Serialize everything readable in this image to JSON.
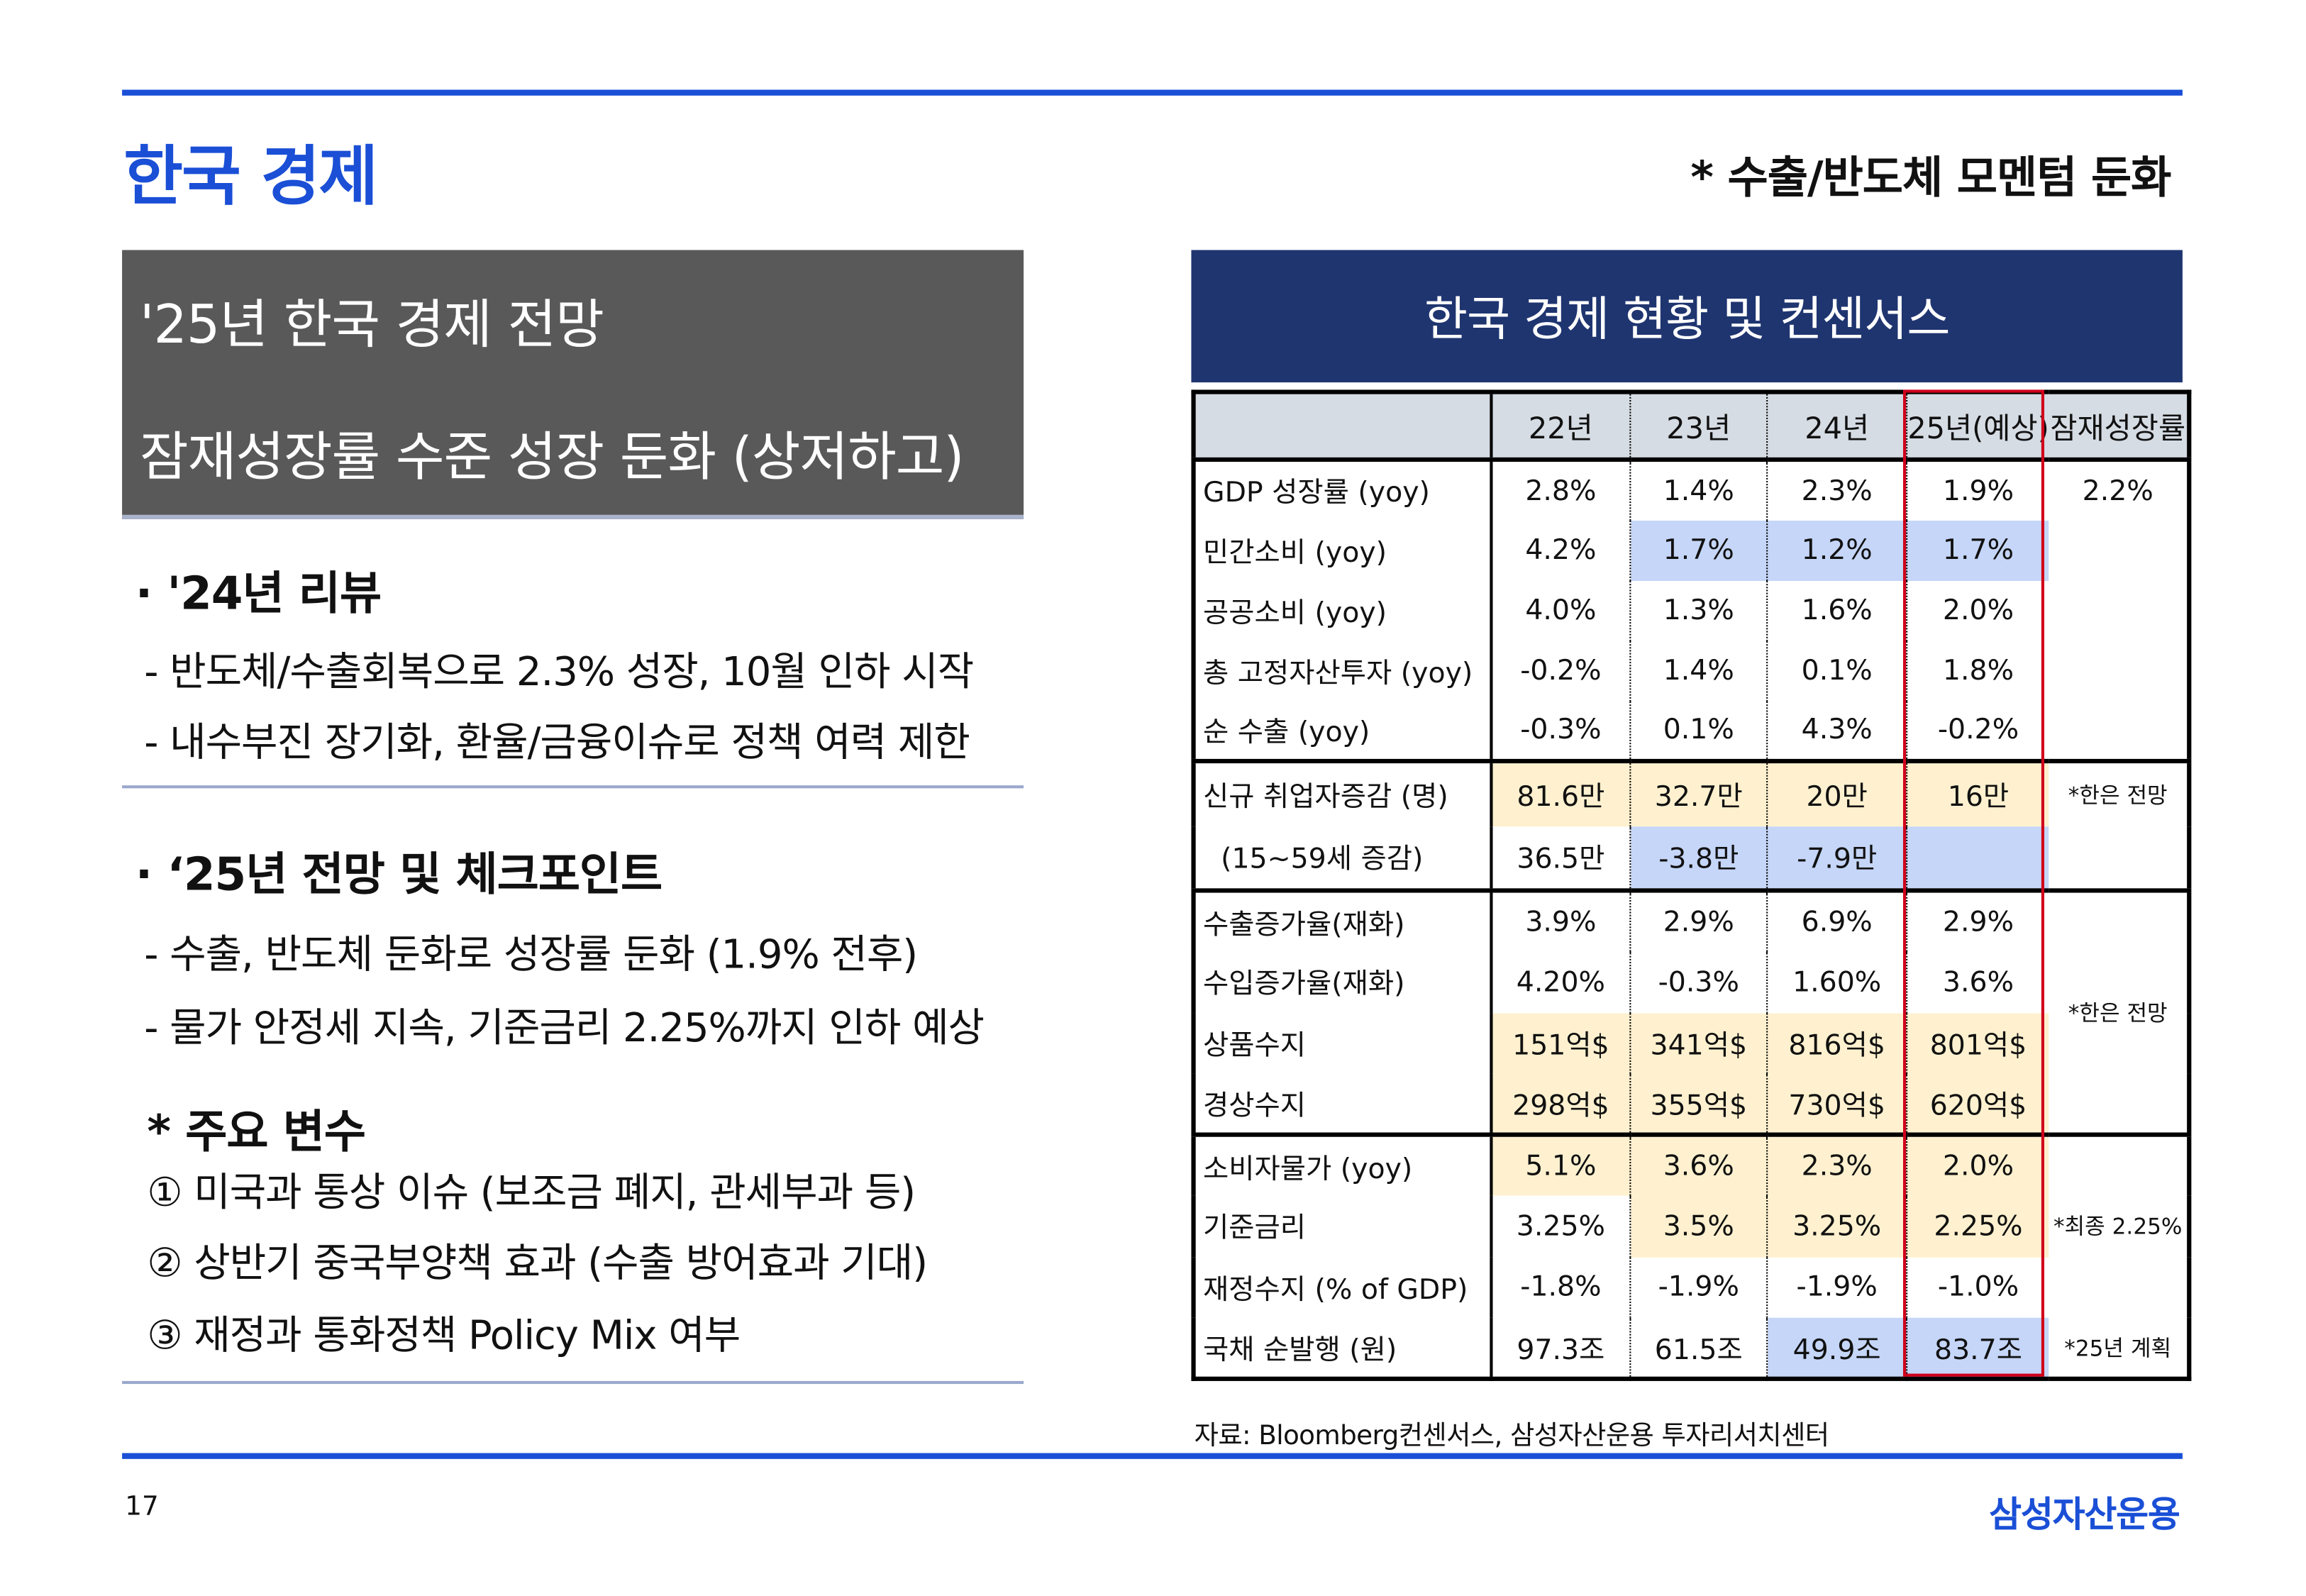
{
  "colors": {
    "accent": "#1a4fd6",
    "header_bg": "#1f3570",
    "box_bg": "#595959",
    "highlight_blue": "#c5d6f8",
    "highlight_yellow": "#fff1cf",
    "forecast_border": "#d0021b"
  },
  "header": {
    "title": "한국 경제",
    "subtitle": "* 수출/반도체 모멘텀 둔화"
  },
  "left": {
    "box_line1": "'25년 한국 경제 전망",
    "box_line2": "잠재성장률 수준 성장 둔화 (상저하고)",
    "review_title": "· '24년 리뷰",
    "review_items": [
      "- 반도체/수출회복으로 2.3% 성장, 10월 인하 시작",
      "- 내수부진 장기화, 환율/금융이슈로 정책 여력 제한"
    ],
    "outlook_title": "· ‘25년 전망 및 체크포인트",
    "outlook_items": [
      "- 수출, 반도체 둔화로 성장률 둔화 (1.9% 전후)",
      "- 물가 안정세 지속, 기준금리 2.25%까지 인하 예상"
    ],
    "vars_title": "* 주요 변수",
    "vars_items": [
      "① 미국과 통상 이슈 (보조금 폐지, 관세부과 등)",
      "② 상반기 중국부양책 효과 (수출 방어효과 기대)",
      "③ 재정과 통화정책 Policy Mix 여부"
    ]
  },
  "table": {
    "title": "한국 경제 현황 및 컨센서스",
    "columns": [
      "",
      "22년",
      "23년",
      "24년",
      "25년(예상)",
      "잠재성장률"
    ],
    "groups": [
      {
        "rows": [
          {
            "label": "GDP 성장률 (yoy)",
            "values": [
              "2.8%",
              "1.4%",
              "2.3%",
              "1.9%"
            ],
            "hl": [
              "",
              "",
              "",
              ""
            ],
            "note": "2.2%"
          },
          {
            "label": "민간소비 (yoy)",
            "values": [
              "4.2%",
              "1.7%",
              "1.2%",
              "1.7%"
            ],
            "hl": [
              "",
              "blue",
              "blue",
              "blue"
            ],
            "note": ""
          },
          {
            "label": "공공소비 (yoy)",
            "values": [
              "4.0%",
              "1.3%",
              "1.6%",
              "2.0%"
            ],
            "hl": [
              "",
              "",
              "",
              ""
            ],
            "note": ""
          },
          {
            "label": "총 고정자산투자 (yoy)",
            "values": [
              "-0.2%",
              "1.4%",
              "0.1%",
              "1.8%"
            ],
            "hl": [
              "",
              "",
              "",
              ""
            ],
            "note": ""
          },
          {
            "label": "순 수출 (yoy)",
            "values": [
              "-0.3%",
              "0.1%",
              "4.3%",
              "-0.2%"
            ],
            "hl": [
              "",
              "",
              "",
              ""
            ],
            "note": ""
          }
        ]
      },
      {
        "rows": [
          {
            "label": "신규 취업자증감 (명)",
            "values": [
              "81.6만",
              "32.7만",
              "20만",
              "16만"
            ],
            "hl": [
              "yellow",
              "yellow",
              "yellow",
              "yellow"
            ],
            "note": "*한은 전망"
          },
          {
            "label": "  (15~59세 증감)",
            "values": [
              "36.5만",
              "-3.8만",
              "-7.9만",
              ""
            ],
            "hl": [
              "",
              "blue",
              "blue",
              "blue"
            ],
            "note": ""
          }
        ]
      },
      {
        "merged_note": "*한은 전망",
        "rows": [
          {
            "label": "수출증가율(재화)",
            "values": [
              "3.9%",
              "2.9%",
              "6.9%",
              "2.9%"
            ],
            "hl": [
              "",
              "",
              "",
              ""
            ]
          },
          {
            "label": "수입증가율(재화)",
            "values": [
              "4.20%",
              "-0.3%",
              "1.60%",
              "3.6%"
            ],
            "hl": [
              "",
              "",
              "",
              ""
            ]
          },
          {
            "label": "상품수지",
            "values": [
              "151억$",
              "341억$",
              "816억$",
              "801억$"
            ],
            "hl": [
              "yellow",
              "yellow",
              "yellow",
              "yellow"
            ]
          },
          {
            "label": "경상수지",
            "values": [
              "298억$",
              "355억$",
              "730억$",
              "620억$"
            ],
            "hl": [
              "yellow",
              "yellow",
              "yellow",
              "yellow"
            ]
          }
        ]
      },
      {
        "rows": [
          {
            "label": "소비자물가 (yoy)",
            "values": [
              "5.1%",
              "3.6%",
              "2.3%",
              "2.0%"
            ],
            "hl": [
              "yellow",
              "yellow",
              "yellow",
              "yellow"
            ],
            "note": ""
          },
          {
            "label": "기준금리",
            "values": [
              "3.25%",
              "3.5%",
              "3.25%",
              "2.25%"
            ],
            "hl": [
              "",
              "yellow",
              "yellow",
              "yellow"
            ],
            "note": "*최종 2.25%"
          },
          {
            "label": "재정수지 (% of GDP)",
            "values": [
              "-1.8%",
              "-1.9%",
              "-1.9%",
              "-1.0%"
            ],
            "hl": [
              "",
              "",
              "",
              ""
            ],
            "note": ""
          },
          {
            "label": "국채 순발행 (원)",
            "values": [
              "97.3조",
              "61.5조",
              "49.9조",
              "83.7조"
            ],
            "hl": [
              "",
              "",
              "blue",
              "blue"
            ],
            "note": "*25년 계획"
          }
        ]
      }
    ],
    "source": "자료: Bloomberg컨센서스, 삼성자산운용 투자리서치센터"
  },
  "footer": {
    "page": "17",
    "brand": "삼성자산운용"
  }
}
